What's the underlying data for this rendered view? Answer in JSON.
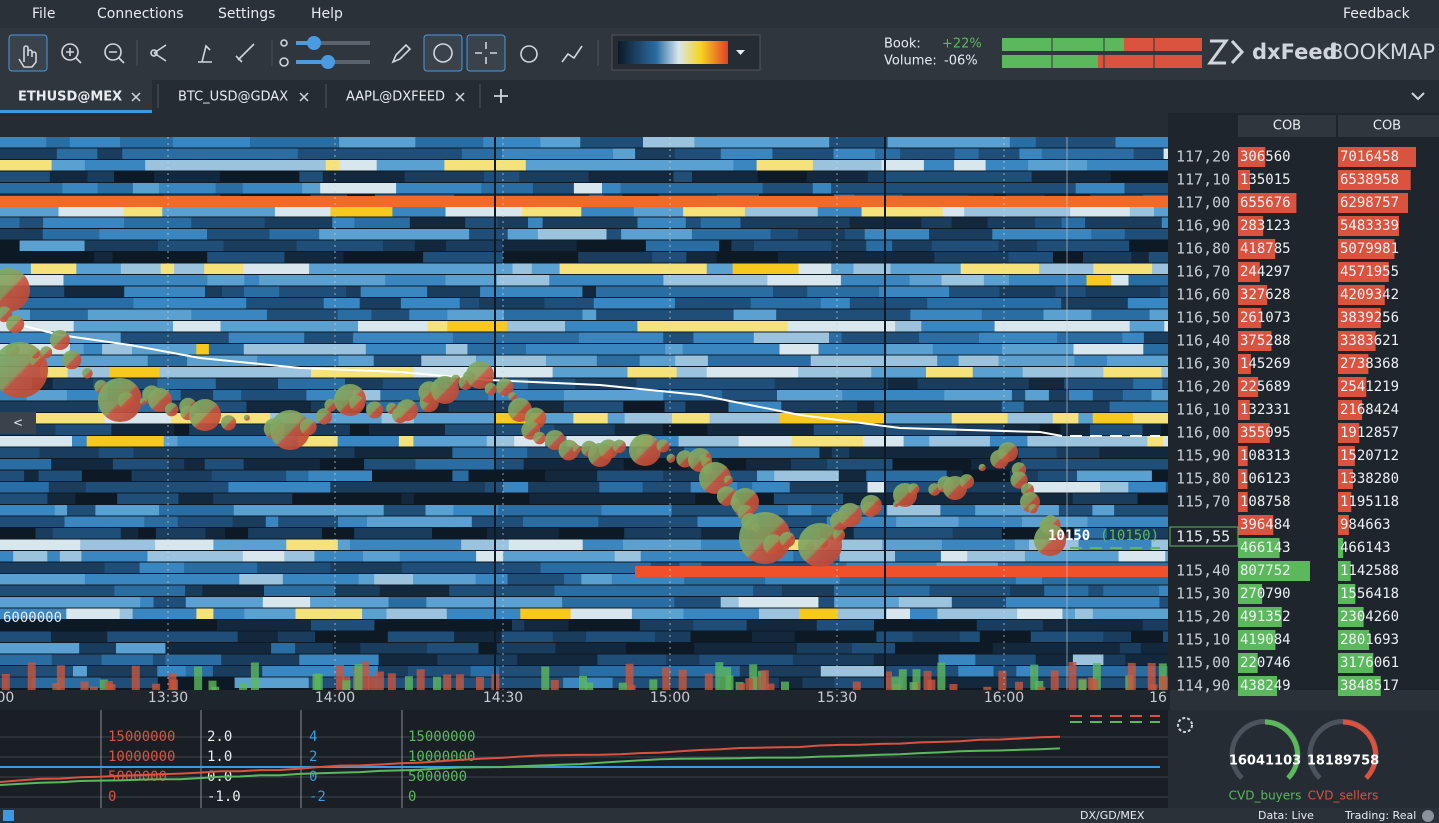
{
  "menu": [
    "File",
    "Connections",
    "Settings",
    "Help"
  ],
  "feedback": "Feedback",
  "stats": {
    "book_label": "Book:",
    "book_value": "+22%",
    "volume_label": "Volume:",
    "volume_value": "-06%"
  },
  "logo": {
    "brand": "dxFeed",
    "product": "BOOKMAP"
  },
  "tabs": [
    "ETHUSD@MEX",
    "BTC_USD@GDAX",
    "AAPL@DXFEED"
  ],
  "ladder": {
    "headers": [
      "COB",
      "COB"
    ],
    "ask_color": "#d9533f",
    "bid_color": "#5cb85c",
    "asks": [
      {
        "price": "117,20",
        "cob": [
          306560,
          7016458
        ]
      },
      {
        "price": "117,10",
        "cob": [
          135015,
          6538958
        ]
      },
      {
        "price": "117,00",
        "cob": [
          655676,
          6298757
        ]
      },
      {
        "price": "116,90",
        "cob": [
          283123,
          5483339
        ]
      },
      {
        "price": "116,80",
        "cob": [
          418785,
          5079981
        ]
      },
      {
        "price": "116,70",
        "cob": [
          244297,
          4571955
        ]
      },
      {
        "price": "116,60",
        "cob": [
          327628,
          4209342
        ]
      },
      {
        "price": "116,50",
        "cob": [
          261073,
          3839256
        ]
      },
      {
        "price": "116,40",
        "cob": [
          375288,
          3383621
        ]
      },
      {
        "price": "116,30",
        "cob": [
          145269,
          2738368
        ]
      },
      {
        "price": "116,20",
        "cob": [
          225689,
          2541219
        ]
      },
      {
        "price": "116,10",
        "cob": [
          132331,
          2168424
        ]
      },
      {
        "price": "116,00",
        "cob": [
          355095,
          1912857
        ]
      },
      {
        "price": "115,90",
        "cob": [
          108313,
          1520712
        ]
      },
      {
        "price": "115,80",
        "cob": [
          106123,
          1338280
        ]
      },
      {
        "price": "115,70",
        "cob": [
          108758,
          1195118
        ]
      },
      {
        "price": null,
        "cob": [
          396484,
          984663
        ]
      }
    ],
    "bids": [
      {
        "price": null,
        "cob": [
          466143,
          466143
        ]
      },
      {
        "price": "115,40",
        "cob": [
          807752,
          1142588
        ]
      },
      {
        "price": "115,30",
        "cob": [
          270790,
          1556418
        ]
      },
      {
        "price": "115,20",
        "cob": [
          491352,
          2304260
        ]
      },
      {
        "price": "115,10",
        "cob": [
          419084,
          2801693
        ]
      },
      {
        "price": "115,00",
        "cob": [
          220746,
          3176061
        ]
      },
      {
        "price": "114,90",
        "cob": [
          438249,
          3848517
        ]
      }
    ],
    "last_price": "115,55"
  },
  "chart_labels": {
    "volume_level": "6000000",
    "trade_size": "10150",
    "trade_size_total": "(10150)"
  },
  "time_axis": [
    ":00",
    "13:30",
    "14:00",
    "14:30",
    "15:00",
    "15:30",
    "16:00",
    "16"
  ],
  "indicator_axes": [
    [
      "15000000",
      "10000000",
      "5000000",
      "0"
    ],
    [
      "2.0",
      "1.0",
      "0.0",
      "-1.0"
    ],
    [
      "4",
      "2",
      "0",
      "-2"
    ],
    [
      "15000000",
      "10000000",
      "5000000",
      "0"
    ]
  ],
  "gauges": [
    {
      "value": "16041103",
      "label": "CVD_buyers"
    },
    {
      "value": "18189758",
      "label": "CVD_sellers"
    }
  ],
  "status": {
    "feed": "DX/GD/MEX",
    "data": "Data: Live",
    "trading": "Trading: Real"
  }
}
